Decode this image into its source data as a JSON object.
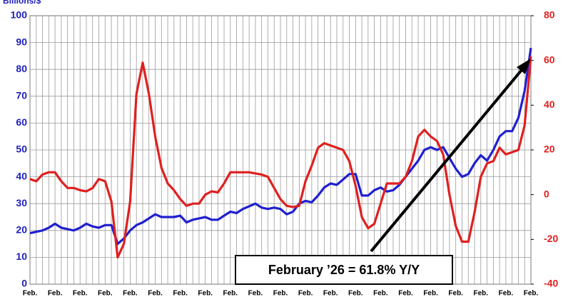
{
  "chart_data": {
    "type": "line",
    "title": "Billions/$",
    "annotation": "February ’26 = 61.8% Y/Y",
    "categories": [
      "Feb.",
      null,
      null,
      null,
      "Feb.",
      null,
      null,
      null,
      "Feb.",
      null,
      null,
      null,
      "Feb.",
      null,
      null,
      null,
      "Feb.",
      null,
      null,
      null,
      "Feb.",
      null,
      null,
      null,
      "Feb.",
      null,
      null,
      null,
      "Feb.",
      null,
      null,
      null,
      "Feb.",
      null,
      null,
      null,
      "Feb.",
      null,
      null,
      null,
      "Feb.",
      null,
      null,
      null,
      "Feb.",
      null,
      null,
      null,
      "Feb.",
      null,
      null,
      null,
      "Feb.",
      null,
      null,
      null,
      "Feb.",
      null,
      null,
      null,
      "Feb.",
      null,
      null,
      null,
      "Feb.",
      null,
      null,
      null,
      "Feb.",
      null,
      null,
      null,
      "Feb.",
      null,
      null,
      null,
      "Feb.",
      null,
      null,
      null,
      "Feb."
    ],
    "series": [
      {
        "color": "#1f1fd0",
        "values": [
          19,
          19.5,
          20,
          21,
          22.5,
          21,
          20.5,
          20,
          21,
          22.5,
          21.5,
          21,
          22,
          22,
          15,
          17,
          20,
          22,
          23,
          24.5,
          26,
          25,
          25,
          25,
          25.5,
          23,
          24,
          24.5,
          25,
          24,
          24,
          25.5,
          27,
          26.5,
          28,
          29,
          30,
          28.5,
          28,
          28.5,
          28,
          26,
          27,
          30,
          31,
          30.5,
          33,
          36,
          37.5,
          37,
          39,
          41,
          41,
          33,
          33,
          35,
          36,
          34.5,
          35,
          37,
          40,
          43,
          46,
          50,
          51,
          50,
          51,
          47,
          43,
          40,
          41,
          45,
          48,
          46,
          50,
          55,
          57,
          57,
          62,
          72,
          88
        ]
      },
      {
        "color": "#e01f1f",
        "axis": "y2",
        "values": [
          7,
          6,
          9,
          10,
          10,
          6,
          3,
          3,
          2,
          1.5,
          3,
          7,
          6,
          -3,
          -28,
          -22,
          -3,
          45,
          59,
          45,
          26,
          12,
          5,
          2,
          -2,
          -5,
          -4,
          -4,
          0,
          1.5,
          1,
          5,
          10,
          10,
          10,
          10,
          9.5,
          9,
          8,
          3,
          -2,
          -5,
          -5.5,
          -5,
          6,
          13,
          21,
          23,
          22,
          21,
          20,
          15,
          4,
          -10,
          -15,
          -13,
          -4,
          5,
          5,
          5,
          8,
          15,
          26,
          29,
          26,
          24,
          18,
          0,
          -14,
          -21,
          -21,
          -8,
          8,
          14,
          15,
          21,
          18,
          19,
          20,
          31,
          61.8
        ]
      }
    ],
    "ylim": [
      0,
      100
    ],
    "yticks": [
      0,
      10,
      20,
      30,
      40,
      50,
      60,
      70,
      80,
      90,
      100
    ],
    "y2lim": [
      -40,
      80
    ],
    "y2ticks": [
      -40,
      -20,
      0,
      20,
      40,
      60,
      80
    ],
    "grid": true
  }
}
